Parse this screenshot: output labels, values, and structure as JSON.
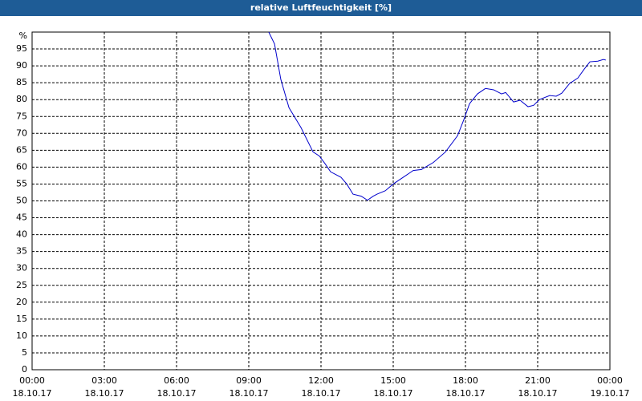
{
  "chart_data": {
    "type": "line",
    "title": "relative Luftfeuchtigkeit [%]",
    "x": [
      9.83,
      10.07,
      10.33,
      10.67,
      11.17,
      11.67,
      11.93,
      12.17,
      12.4,
      12.83,
      13.07,
      13.33,
      13.67,
      13.93,
      14.17,
      14.33,
      14.67,
      15.0,
      15.5,
      15.83,
      16.17,
      16.67,
      17.17,
      17.67,
      17.93,
      18.17,
      18.5,
      18.83,
      19.17,
      19.5,
      19.67,
      20.0,
      20.27,
      20.6,
      20.83,
      21.07,
      21.5,
      21.77,
      22.0,
      22.33,
      22.67,
      22.93,
      23.17,
      23.5,
      23.73,
      23.83
    ],
    "series": [
      {
        "color": "#0000cc",
        "values": [
          100,
          96.5,
          86,
          77.6,
          71.7,
          64.5,
          63.3,
          61,
          58.6,
          57,
          55,
          52,
          51.4,
          50.2,
          51.4,
          52,
          53,
          55,
          57.4,
          59,
          59.3,
          61.4,
          64.5,
          69.3,
          74,
          78.8,
          81.7,
          83.3,
          82.9,
          81.7,
          82.1,
          79.3,
          79.8,
          77.9,
          78.3,
          80,
          81.2,
          81,
          81.9,
          84.8,
          86.4,
          89,
          91.2,
          91.4,
          91.9,
          91.7
        ]
      }
    ],
    "xlim": [
      0,
      24
    ],
    "xticks": [
      {
        "value": 0,
        "label": "00:00"
      },
      {
        "value": 3,
        "label": "03:00"
      },
      {
        "value": 6,
        "label": "06:00"
      },
      {
        "value": 9,
        "label": "09:00"
      },
      {
        "value": 12,
        "label": "12:00"
      },
      {
        "value": 15,
        "label": "15:00"
      },
      {
        "value": 18,
        "label": "18:00"
      },
      {
        "value": 21,
        "label": "21:00"
      },
      {
        "value": 24,
        "label": "00:00"
      }
    ],
    "xtick_dates": [
      "18.10.17",
      "18.10.17",
      "18.10.17",
      "18.10.17",
      "18.10.17",
      "18.10.17",
      "18.10.17",
      "18.10.17",
      "19.10.17"
    ],
    "ylim": [
      0,
      100
    ],
    "yticks": [
      0,
      5,
      10,
      15,
      20,
      25,
      30,
      35,
      40,
      45,
      50,
      55,
      60,
      65,
      70,
      75,
      80,
      85,
      90,
      95,
      {
        "value": 100,
        "label": "%"
      }
    ],
    "grid": true
  }
}
